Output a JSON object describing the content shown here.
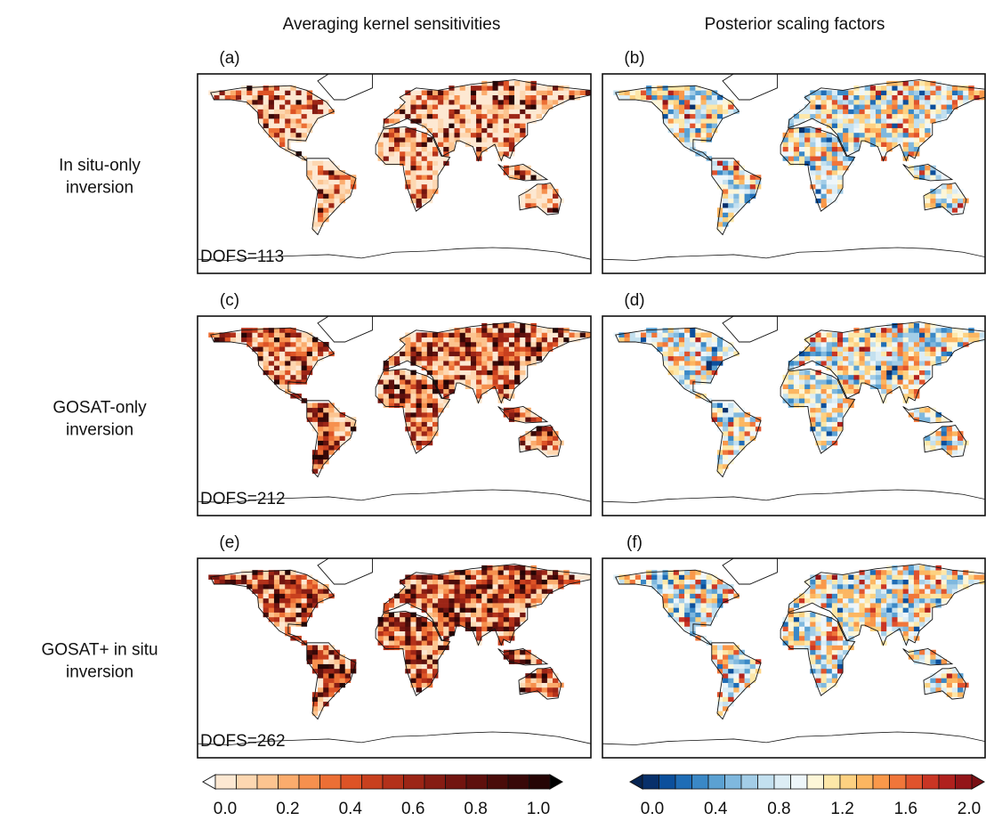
{
  "columns": [
    "Averaging kernel sensitivities",
    "Posterior scaling factors"
  ],
  "rows": [
    {
      "label": [
        "In situ-only",
        "inversion"
      ]
    },
    {
      "label": [
        "GOSAT-only",
        "inversion"
      ]
    },
    {
      "label": [
        "GOSAT+ in situ",
        "inversion"
      ]
    }
  ],
  "panels": [
    {
      "label": "(a)",
      "annotation": "DOFS=113"
    },
    {
      "label": "(b)"
    },
    {
      "label": "(c)",
      "annotation": "DOFS=212"
    },
    {
      "label": "(d)"
    },
    {
      "label": "(e)",
      "annotation": "DOFS=262"
    },
    {
      "label": "(f)"
    }
  ],
  "colorbars": [
    {
      "range": [
        0,
        1
      ],
      "ticks": [
        {
          "value": 0,
          "label": "0.0"
        },
        {
          "value": 0.2,
          "label": "0.2"
        },
        {
          "value": 0.4,
          "label": "0.4"
        },
        {
          "value": 0.6,
          "label": "0.6"
        },
        {
          "value": 0.8,
          "label": "0.8"
        },
        {
          "value": 1,
          "label": "1.0"
        }
      ],
      "colors": [
        "#fde8d2",
        "#fdd7b1",
        "#fcc490",
        "#fbac6d",
        "#f6904e",
        "#ec6f35",
        "#dd5326",
        "#c8401e",
        "#b3311a",
        "#9c2516",
        "#861c13",
        "#721510",
        "#5e100d",
        "#4a0c0a",
        "#380808",
        "#260505"
      ],
      "extend_colors": [
        "#ffffff",
        "#000000"
      ]
    },
    {
      "range": [
        0,
        2
      ],
      "ticks": [
        {
          "value": 0,
          "label": "0.0"
        },
        {
          "value": 0.4,
          "label": "0.4"
        },
        {
          "value": 0.8,
          "label": "0.8"
        },
        {
          "value": 1.2,
          "label": "1.2"
        },
        {
          "value": 1.6,
          "label": "1.6"
        },
        {
          "value": 2,
          "label": "2.0"
        }
      ],
      "colors": [
        "#08306b",
        "#0b4f9c",
        "#1f6db6",
        "#3a88c6",
        "#5ba1d2",
        "#7fb8de",
        "#a3cde7",
        "#c3e0ef",
        "#dcedf5",
        "#eef6fa",
        "#fdf6d8",
        "#fde7a8",
        "#fdd181",
        "#fcb661",
        "#f9984a",
        "#f0763a",
        "#e0532d",
        "#c93524",
        "#b0211e",
        "#931519"
      ],
      "extend_colors": [
        "#062452",
        "#7a0f14"
      ]
    }
  ]
}
